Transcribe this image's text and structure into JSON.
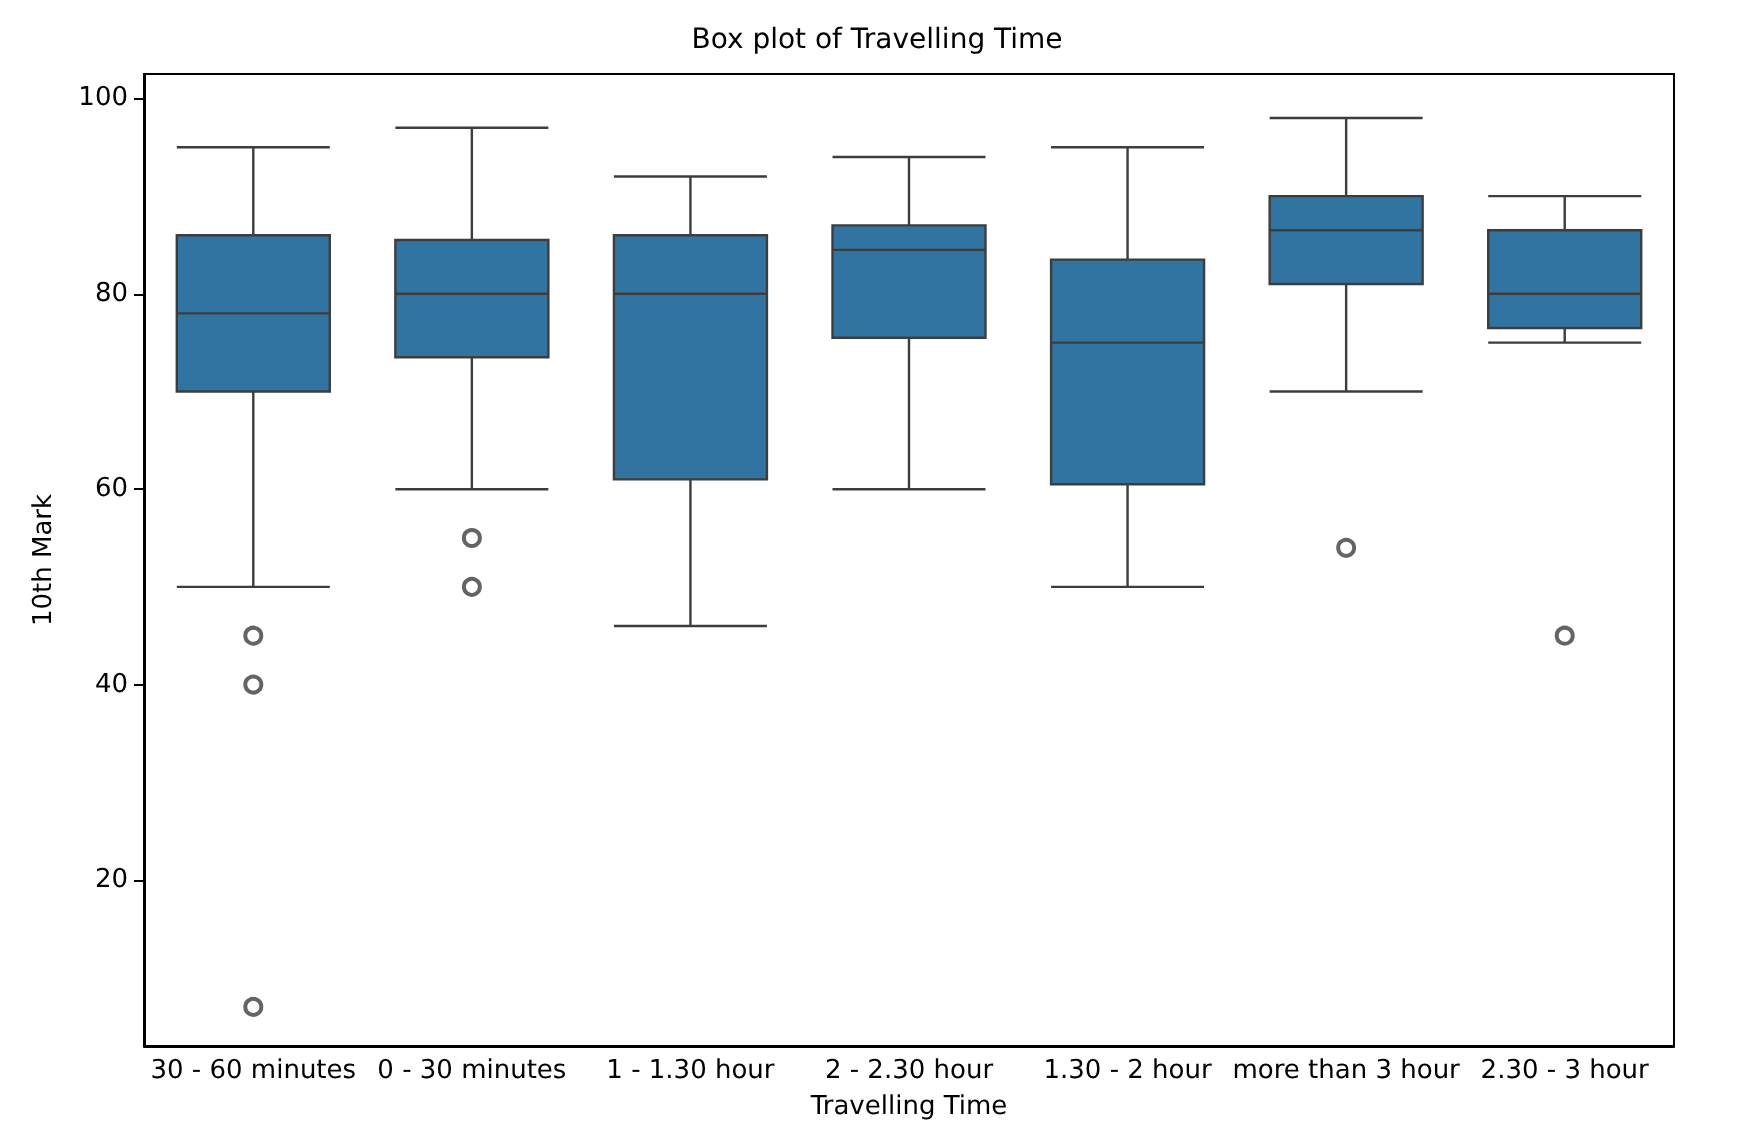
{
  "chart_data": {
    "type": "box",
    "title": "Box plot of Travelling Time",
    "xlabel": "Travelling Time",
    "ylabel": "10th Mark",
    "categories": [
      "30 - 60 minutes",
      "0 - 30 minutes",
      "1 - 1.30 hour",
      "2 - 2.30 hour",
      "1.30 - 2 hour",
      "more than 3 hour",
      "2.30 - 3 hour"
    ],
    "ylim": [
      3,
      102.5
    ],
    "yticks": [
      20,
      40,
      60,
      80,
      100
    ],
    "marker": "circle",
    "series": [
      {
        "color": "#3274a1",
        "boxes": [
          {
            "low": 50,
            "q1": 70,
            "median": 78,
            "q3": 86,
            "high": 95,
            "outliers": [
              45,
              40,
              7
            ]
          },
          {
            "low": 60,
            "q1": 73.5,
            "median": 80,
            "q3": 85.5,
            "high": 97,
            "outliers": [
              55,
              50
            ]
          },
          {
            "low": 46,
            "q1": 61,
            "median": 80,
            "q3": 86,
            "high": 92
          },
          {
            "low": 60,
            "q1": 75.5,
            "median": 84.5,
            "q3": 87,
            "high": 94
          },
          {
            "low": 50,
            "q1": 60.5,
            "median": 75,
            "q3": 83.5,
            "high": 95
          },
          {
            "low": 70,
            "q1": 81,
            "median": 86.5,
            "q3": 90,
            "high": 98,
            "outliers": [
              54
            ]
          },
          {
            "low": 75,
            "q1": 76.5,
            "median": 80,
            "q3": 86.5,
            "high": 90,
            "outliers": [
              45
            ]
          }
        ]
      }
    ]
  }
}
